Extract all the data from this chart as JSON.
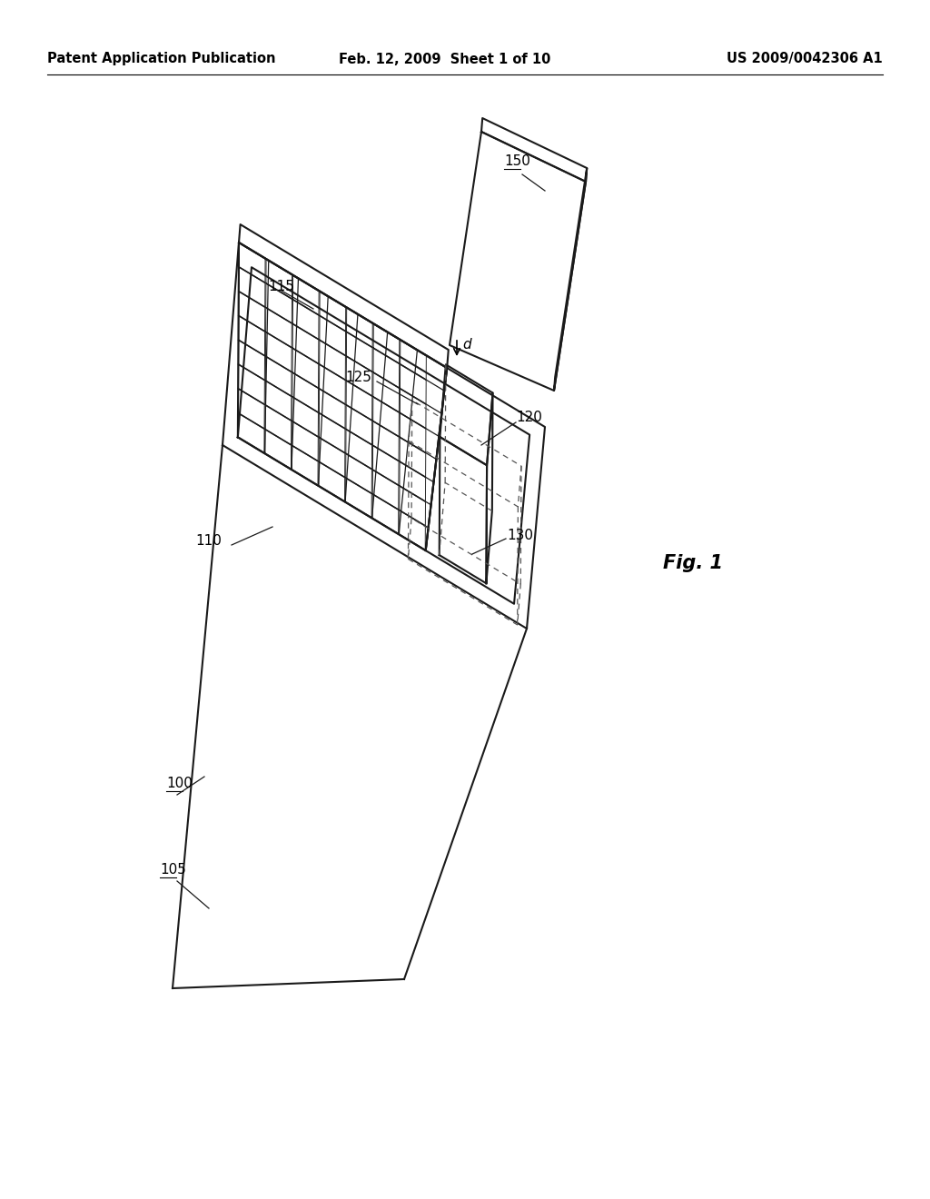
{
  "bg_color": "#ffffff",
  "line_color": "#1a1a1a",
  "dashed_color": "#555555",
  "header_left": "Patent Application Publication",
  "header_mid": "Feb. 12, 2009  Sheet 1 of 10",
  "header_right": "US 2009/0042306 A1",
  "fig_label": "Fig. 1",
  "label_fontsize": 11,
  "header_fontsize": 10.5,
  "fig_fontsize": 15
}
